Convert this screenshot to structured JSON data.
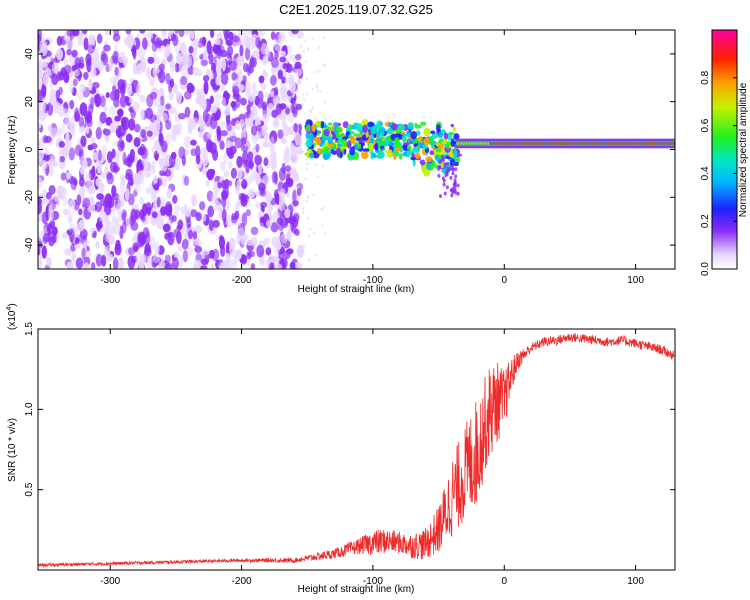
{
  "title": "C2E1.2025.119.07.32.G25",
  "colors": {
    "snr_line": "#ee2a2a",
    "spec_violet": "#7a2cf0",
    "spec_blue": "#2a2af5"
  },
  "chart_data": [
    {
      "type": "heatmap",
      "xlabel": "Height of straight line (km)",
      "ylabel": "Frequency (Hz)",
      "xlim": [
        -355,
        130
      ],
      "ylim": [
        -50,
        50
      ],
      "xticks": [
        -300,
        -200,
        -100,
        0,
        100
      ],
      "yticks": [
        -40,
        -20,
        0,
        20,
        40
      ],
      "colorbar": {
        "label": "Normalized spectral amplitude",
        "range": [
          0,
          1
        ],
        "ticks": [
          0.0,
          0.2,
          0.4,
          0.6,
          0.8
        ]
      },
      "regions": [
        {
          "x": [
            -355,
            -155
          ],
          "freq": [
            -50,
            50
          ],
          "amplitude": "low, broadband noise"
        },
        {
          "x": [
            -150,
            -35
          ],
          "freq": [
            -22,
            12
          ],
          "amplitude": "0.2–0.8, scattered"
        },
        {
          "x": [
            -35,
            130
          ],
          "freq": [
            0,
            5
          ],
          "amplitude": "up to 1.0, narrow tone near 2–3 Hz"
        }
      ]
    },
    {
      "type": "line",
      "xlabel": "Height of straight line (km)",
      "ylabel": "SNR (10 * v/v)",
      "y_multiplier": "(x10^4)",
      "y_multiplier_base": "(x10",
      "y_multiplier_exp": "4",
      "y_multiplier_close": ")",
      "xlim": [
        -355,
        130
      ],
      "ylim": [
        0,
        1.5
      ],
      "xticks": [
        -300,
        -200,
        -100,
        0,
        100
      ],
      "yticks": [
        "0.5",
        "1.0",
        "1.5"
      ],
      "series": [
        {
          "x": [
            -355,
            -300,
            -250,
            -200,
            -160,
            -130,
            -110,
            -100,
            -90,
            -80,
            -70,
            -60,
            -50,
            -40,
            -30,
            -20,
            -15,
            -10,
            -5,
            0,
            5,
            10,
            20,
            30,
            40,
            50,
            60,
            70,
            80,
            90,
            100,
            110,
            120,
            130
          ],
          "values": [
            0.03,
            0.04,
            0.05,
            0.06,
            0.06,
            0.1,
            0.15,
            0.17,
            0.18,
            0.17,
            0.15,
            0.16,
            0.25,
            0.45,
            0.6,
            0.75,
            0.9,
            1.0,
            1.05,
            1.05,
            1.2,
            1.3,
            1.38,
            1.42,
            1.43,
            1.45,
            1.44,
            1.43,
            1.42,
            1.43,
            1.41,
            1.39,
            1.37,
            1.33
          ],
          "noise": [
            0.01,
            0.01,
            0.01,
            0.01,
            0.015,
            0.03,
            0.05,
            0.08,
            0.08,
            0.07,
            0.08,
            0.1,
            0.15,
            0.25,
            0.3,
            0.35,
            0.3,
            0.3,
            0.25,
            0.2,
            0.12,
            0.06,
            0.03,
            0.03,
            0.03,
            0.03,
            0.03,
            0.03,
            0.03,
            0.03,
            0.03,
            0.03,
            0.03,
            0.03
          ]
        }
      ]
    }
  ]
}
